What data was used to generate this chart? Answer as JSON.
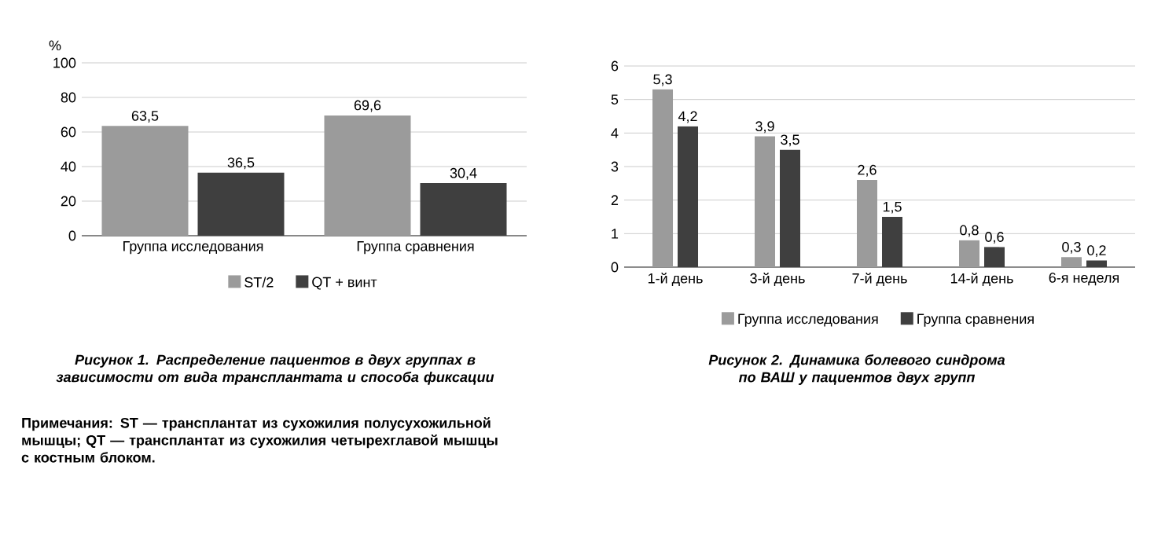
{
  "chart_data": [
    {
      "type": "bar",
      "ylabel": "%",
      "categories": [
        "Группа исследования",
        "Группа сравнения"
      ],
      "series": [
        {
          "name": "ST/2",
          "color": "#9b9b9b",
          "values": [
            63.5,
            69.6
          ],
          "value_labels": [
            "63,5",
            "69,6"
          ]
        },
        {
          "name": "QT + винт",
          "color": "#3f3f3f",
          "values": [
            36.5,
            30.4
          ],
          "value_labels": [
            "36,5",
            "30,4"
          ]
        }
      ],
      "ylim": [
        0,
        100
      ],
      "yticks": [
        0,
        20,
        40,
        60,
        80,
        100
      ],
      "grid": "y",
      "legend": "bottom",
      "annotations": [
        "Рисунок 1. Распределение пациентов в двух группах в зависимости от вида трансплантата и способа фиксации",
        "Примечания: ST — трансплантат из сухожилия полусухожильной мышцы; QT — трансплантат из сухожилия четырехглавой мышцы с костным блоком."
      ]
    },
    {
      "type": "bar",
      "categories": [
        "1-й день",
        "3-й день",
        "7-й день",
        "14-й день",
        "6-я неделя"
      ],
      "series": [
        {
          "name": "Группа исследования",
          "color": "#9b9b9b",
          "values": [
            5.3,
            3.9,
            2.6,
            0.8,
            0.3
          ],
          "value_labels": [
            "5,3",
            "3,9",
            "2,6",
            "0,8",
            "0,3"
          ]
        },
        {
          "name": "Группа сравнения",
          "color": "#3f3f3f",
          "values": [
            4.2,
            3.5,
            1.5,
            0.6,
            0.2
          ],
          "value_labels": [
            "4,2",
            "3,5",
            "1,5",
            "0,6",
            "0,2"
          ]
        }
      ],
      "ylim": [
        0,
        6
      ],
      "yticks": [
        0,
        1,
        2,
        3,
        4,
        5,
        6
      ],
      "grid": "y",
      "legend": "bottom",
      "annotations": [
        "Рисунок 2. Динамика болевого синдрома по ВАШ у пациентов двух групп"
      ]
    }
  ]
}
